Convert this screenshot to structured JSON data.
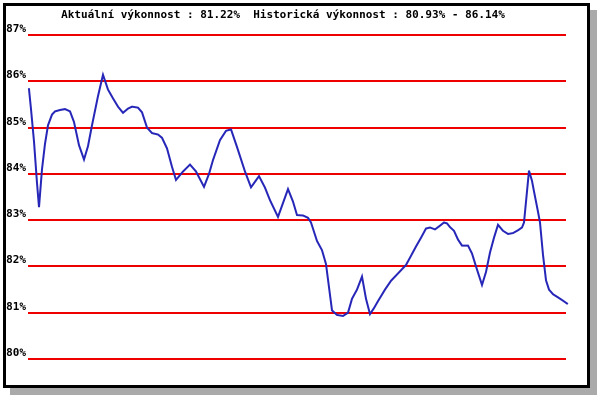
{
  "window": {
    "background_color": "#ffffff",
    "frame_border_color": "#000000",
    "frame_shadow_color": "#aaaaaa"
  },
  "header": {
    "title": "Aktuální výkonnost : 81.22%  Historická výkonnost : 80.93% - 86.14%"
  },
  "chart_data": {
    "type": "line",
    "title": "Aktuální výkonnost : 81.22%  Historická výkonnost : 80.93% - 86.14%",
    "current_performance_pct": 81.22,
    "historical_min_pct": 80.93,
    "historical_max_pct": 86.14,
    "unit": "%",
    "grid": "horizontal gridlines at every 1%",
    "gridline_color": "#ee0000",
    "line_color": "#2626b8",
    "legend": "none",
    "xlabel": "",
    "ylabel": "",
    "ylim": [
      80,
      87
    ],
    "y_ticks": [
      {
        "label": "87%",
        "value": 87
      },
      {
        "label": "86%",
        "value": 86
      },
      {
        "label": "85%",
        "value": 85
      },
      {
        "label": "84%",
        "value": 84
      },
      {
        "label": "83%",
        "value": 83
      },
      {
        "label": "82%",
        "value": 82
      },
      {
        "label": "81%",
        "value": 81
      },
      {
        "label": "80%",
        "value": 80
      }
    ],
    "series": [
      {
        "name": "výkonnost",
        "points": [
          [
            29,
            85.83
          ],
          [
            31,
            85.4
          ],
          [
            34,
            84.7
          ],
          [
            37,
            83.8
          ],
          [
            39,
            83.28
          ],
          [
            42,
            84.1
          ],
          [
            45,
            84.65
          ],
          [
            48,
            85.05
          ],
          [
            52,
            85.28
          ],
          [
            55,
            85.35
          ],
          [
            60,
            85.38
          ],
          [
            65,
            85.4
          ],
          [
            70,
            85.35
          ],
          [
            74,
            85.12
          ],
          [
            79,
            84.62
          ],
          [
            84,
            84.31
          ],
          [
            88,
            84.6
          ],
          [
            92,
            85.05
          ],
          [
            98,
            85.68
          ],
          [
            103,
            86.14
          ],
          [
            108,
            85.82
          ],
          [
            113,
            85.63
          ],
          [
            118,
            85.45
          ],
          [
            123,
            85.32
          ],
          [
            128,
            85.41
          ],
          [
            132,
            85.45
          ],
          [
            138,
            85.43
          ],
          [
            142,
            85.33
          ],
          [
            147,
            85.0
          ],
          [
            152,
            84.88
          ],
          [
            158,
            84.85
          ],
          [
            162,
            84.78
          ],
          [
            167,
            84.55
          ],
          [
            172,
            84.15
          ],
          [
            176,
            83.87
          ],
          [
            183,
            84.05
          ],
          [
            190,
            84.2
          ],
          [
            196,
            84.05
          ],
          [
            204,
            83.72
          ],
          [
            209,
            84.0
          ],
          [
            213,
            84.3
          ],
          [
            220,
            84.73
          ],
          [
            226,
            84.93
          ],
          [
            231,
            84.96
          ],
          [
            237,
            84.58
          ],
          [
            245,
            84.05
          ],
          [
            251,
            83.71
          ],
          [
            259,
            83.95
          ],
          [
            265,
            83.7
          ],
          [
            270,
            83.43
          ],
          [
            278,
            83.07
          ],
          [
            288,
            83.67
          ],
          [
            293,
            83.4
          ],
          [
            297,
            83.11
          ],
          [
            303,
            83.1
          ],
          [
            308,
            83.05
          ],
          [
            311,
            82.95
          ],
          [
            317,
            82.55
          ],
          [
            322,
            82.35
          ],
          [
            326,
            82.05
          ],
          [
            332,
            81.05
          ],
          [
            337,
            80.95
          ],
          [
            343,
            80.93
          ],
          [
            348,
            81.0
          ],
          [
            352,
            81.3
          ],
          [
            357,
            81.5
          ],
          [
            362,
            81.78
          ],
          [
            366,
            81.3
          ],
          [
            370,
            80.97
          ],
          [
            374,
            81.1
          ],
          [
            378,
            81.25
          ],
          [
            385,
            81.5
          ],
          [
            391,
            81.69
          ],
          [
            398,
            81.85
          ],
          [
            406,
            82.03
          ],
          [
            411,
            82.23
          ],
          [
            416,
            82.43
          ],
          [
            421,
            82.62
          ],
          [
            426,
            82.82
          ],
          [
            430,
            82.84
          ],
          [
            435,
            82.8
          ],
          [
            440,
            82.88
          ],
          [
            444,
            82.95
          ],
          [
            447,
            82.93
          ],
          [
            450,
            82.85
          ],
          [
            454,
            82.77
          ],
          [
            458,
            82.58
          ],
          [
            462,
            82.45
          ],
          [
            468,
            82.45
          ],
          [
            472,
            82.28
          ],
          [
            476,
            82.0
          ],
          [
            482,
            81.6
          ],
          [
            486,
            81.88
          ],
          [
            490,
            82.3
          ],
          [
            494,
            82.62
          ],
          [
            498,
            82.9
          ],
          [
            503,
            82.77
          ],
          [
            508,
            82.7
          ],
          [
            513,
            82.72
          ],
          [
            518,
            82.78
          ],
          [
            522,
            82.84
          ],
          [
            524,
            82.95
          ],
          [
            529,
            84.07
          ],
          [
            532,
            83.85
          ],
          [
            534,
            83.62
          ],
          [
            536,
            83.4
          ],
          [
            538,
            83.18
          ],
          [
            540,
            82.95
          ],
          [
            543,
            82.25
          ],
          [
            546,
            81.7
          ],
          [
            549,
            81.5
          ],
          [
            553,
            81.4
          ],
          [
            558,
            81.33
          ],
          [
            563,
            81.26
          ],
          [
            567,
            81.2
          ]
        ]
      }
    ]
  }
}
